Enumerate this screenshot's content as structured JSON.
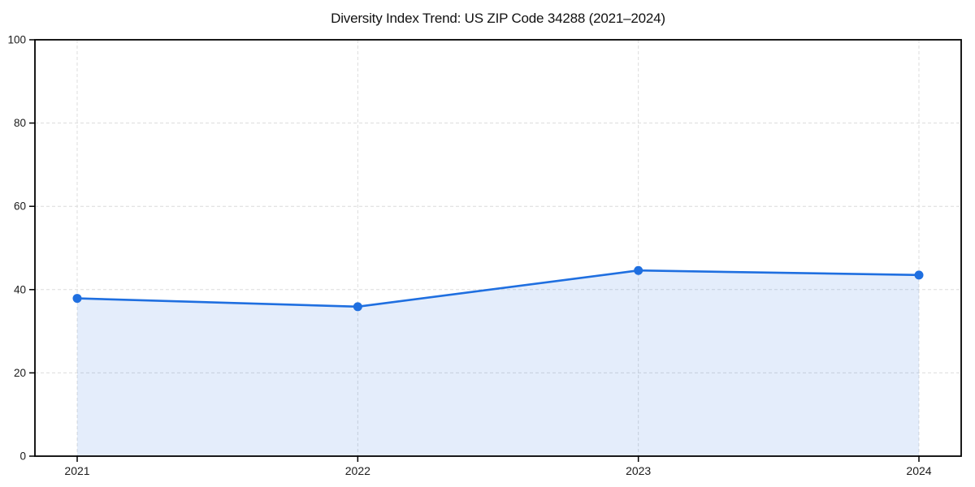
{
  "page": {
    "background": "#ffffff"
  },
  "chart_data": {
    "type": "area",
    "title": "Diversity Index Trend: US ZIP Code 34288 (2021–2024)",
    "categories": [
      "2021",
      "2022",
      "2023",
      "2024"
    ],
    "series": [
      {
        "name": "Diversity Index",
        "values": [
          37.9,
          35.9,
          44.6,
          43.5
        ]
      }
    ],
    "xlabel": "",
    "ylabel": "",
    "ylim": [
      0,
      100
    ],
    "yticks": [
      0,
      20,
      40,
      60,
      80,
      100
    ],
    "grid": "dashed, horizontal and vertical",
    "legend_position": "none",
    "marker": "circle",
    "colors": {
      "line": "#1f6fe0",
      "fill": "#1f6fe0",
      "fill_opacity": 0.12,
      "grid": "#dcdcdc",
      "axis": "#000000",
      "tick_text": "#1a1a1a"
    }
  }
}
